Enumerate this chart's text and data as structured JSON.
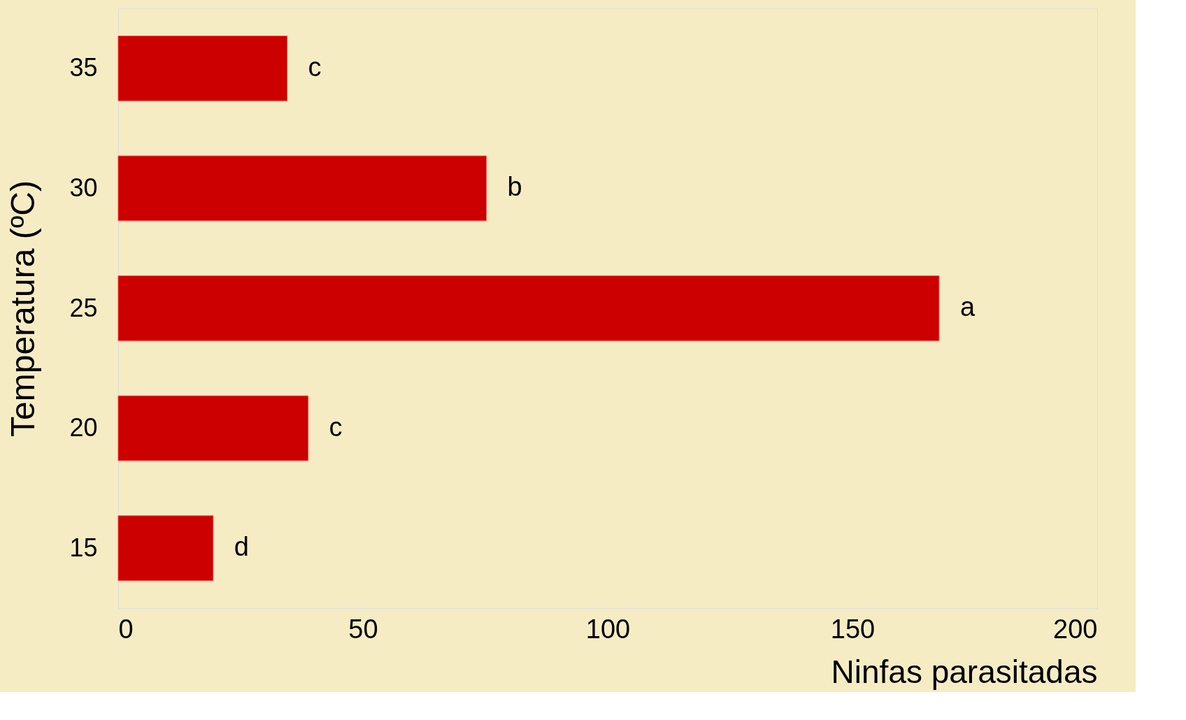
{
  "chart_data": {
    "type": "bar",
    "orientation": "horizontal",
    "xlabel": "Ninfas parasitadas",
    "ylabel": "Temperatura (ºC)",
    "categories": [
      "35",
      "30",
      "25",
      "20",
      "15"
    ],
    "values": [
      34.5,
      75.2,
      167.7,
      38.8,
      19.4
    ],
    "color": "#cc0000",
    "value_labels": [
      "c",
      "b",
      "a",
      "c",
      "d"
    ],
    "xlim": [
      0,
      200
    ],
    "xticks": [
      0,
      50,
      100,
      150,
      200
    ],
    "grid": false
  }
}
